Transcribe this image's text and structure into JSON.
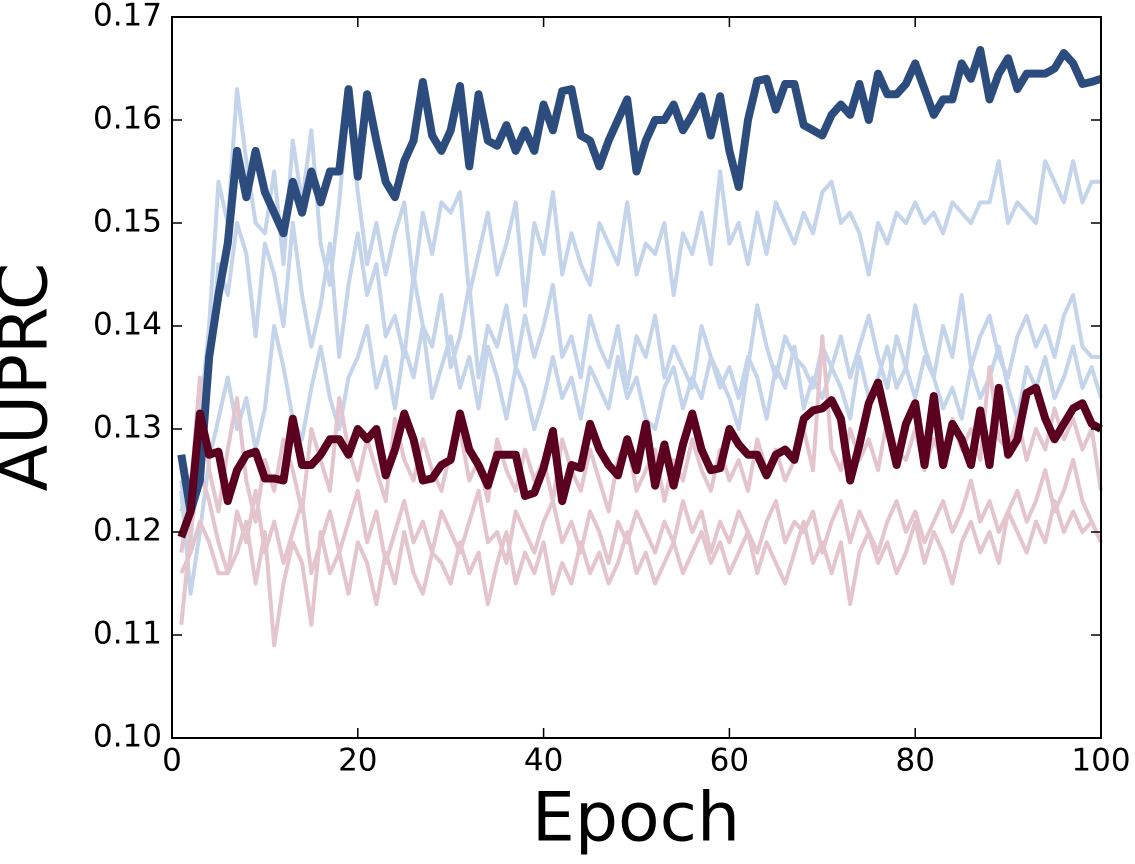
{
  "chart_data": {
    "type": "line",
    "x_label": "Epoch",
    "y_label": "AUPRC",
    "xlim": [
      0,
      100
    ],
    "xticks": [
      0,
      20,
      40,
      60,
      80,
      100
    ],
    "ylim": [
      0.1,
      0.17
    ],
    "yticks": [
      {
        "value": 0.1,
        "label": "0.10"
      },
      0.11,
      0.12,
      0.13,
      0.14,
      0.15,
      0.16,
      0.17
    ],
    "x": [
      1,
      2,
      3,
      4,
      5,
      6,
      7,
      8,
      9,
      10,
      11,
      12,
      13,
      14,
      15,
      16,
      17,
      18,
      19,
      20,
      21,
      22,
      23,
      24,
      25,
      26,
      27,
      28,
      29,
      30,
      31,
      32,
      33,
      34,
      35,
      36,
      37,
      38,
      39,
      40,
      41,
      42,
      43,
      44,
      45,
      46,
      47,
      48,
      49,
      50,
      51,
      52,
      53,
      54,
      55,
      56,
      57,
      58,
      59,
      60,
      61,
      62,
      63,
      64,
      65,
      66,
      67,
      68,
      69,
      70,
      71,
      72,
      73,
      74,
      75,
      76,
      77,
      78,
      79,
      80,
      81,
      82,
      83,
      84,
      85,
      86,
      87,
      88,
      89,
      90,
      91,
      92,
      93,
      94,
      95,
      96,
      97,
      98,
      99,
      100
    ],
    "series": [
      {
        "color": "#c3d4eb",
        "linewidth": 4,
        "values": [
          0.125,
          0.119,
          0.131,
          0.14,
          0.154,
          0.15,
          0.163,
          0.156,
          0.15,
          0.149,
          0.155,
          0.146,
          0.158,
          0.152,
          0.159,
          0.148,
          0.144,
          0.152,
          0.162,
          0.153,
          0.146,
          0.15,
          0.145,
          0.149,
          0.152,
          0.144,
          0.151,
          0.147,
          0.152,
          0.151,
          0.153,
          0.143,
          0.147,
          0.151,
          0.145,
          0.148,
          0.152,
          0.142,
          0.15,
          0.147,
          0.153,
          0.145,
          0.149,
          0.146,
          0.144,
          0.15,
          0.148,
          0.146,
          0.152,
          0.145,
          0.148,
          0.147,
          0.15,
          0.143,
          0.149,
          0.147,
          0.151,
          0.146,
          0.155,
          0.148,
          0.15,
          0.146,
          0.151,
          0.147,
          0.152,
          0.15,
          0.148,
          0.151,
          0.149,
          0.153,
          0.154,
          0.15,
          0.151,
          0.149,
          0.145,
          0.15,
          0.148,
          0.151,
          0.15,
          0.152,
          0.15,
          0.151,
          0.149,
          0.152,
          0.151,
          0.15,
          0.152,
          0.152,
          0.156,
          0.15,
          0.152,
          0.151,
          0.15,
          0.156,
          0.154,
          0.152,
          0.156,
          0.152,
          0.154,
          0.154
        ]
      },
      {
        "color": "#c3d4eb",
        "linewidth": 4,
        "values": [
          0.122,
          0.125,
          0.13,
          0.135,
          0.146,
          0.143,
          0.15,
          0.147,
          0.139,
          0.148,
          0.145,
          0.14,
          0.15,
          0.143,
          0.138,
          0.142,
          0.148,
          0.137,
          0.144,
          0.149,
          0.143,
          0.146,
          0.139,
          0.141,
          0.137,
          0.145,
          0.14,
          0.138,
          0.143,
          0.136,
          0.139,
          0.144,
          0.135,
          0.14,
          0.138,
          0.142,
          0.136,
          0.141,
          0.137,
          0.14,
          0.144,
          0.137,
          0.139,
          0.135,
          0.141,
          0.138,
          0.136,
          0.14,
          0.134,
          0.139,
          0.137,
          0.141,
          0.135,
          0.138,
          0.136,
          0.134,
          0.14,
          0.137,
          0.135,
          0.133,
          0.13,
          0.136,
          0.142,
          0.138,
          0.135,
          0.139,
          0.137,
          0.136,
          0.134,
          0.138,
          0.136,
          0.139,
          0.135,
          0.138,
          0.141,
          0.137,
          0.134,
          0.139,
          0.136,
          0.142,
          0.138,
          0.135,
          0.14,
          0.137,
          0.143,
          0.136,
          0.139,
          0.141,
          0.137,
          0.135,
          0.139,
          0.141,
          0.138,
          0.14,
          0.137,
          0.141,
          0.143,
          0.138,
          0.137,
          0.137
        ]
      },
      {
        "color": "#c3d4eb",
        "linewidth": 4,
        "values": [
          0.124,
          0.114,
          0.12,
          0.127,
          0.131,
          0.135,
          0.13,
          0.133,
          0.128,
          0.132,
          0.14,
          0.136,
          0.131,
          0.129,
          0.134,
          0.138,
          0.133,
          0.13,
          0.135,
          0.137,
          0.14,
          0.134,
          0.137,
          0.132,
          0.138,
          0.135,
          0.14,
          0.133,
          0.136,
          0.139,
          0.134,
          0.137,
          0.132,
          0.138,
          0.135,
          0.131,
          0.136,
          0.134,
          0.13,
          0.133,
          0.137,
          0.133,
          0.135,
          0.131,
          0.136,
          0.134,
          0.132,
          0.137,
          0.133,
          0.135,
          0.131,
          0.13,
          0.134,
          0.136,
          0.132,
          0.135,
          0.133,
          0.137,
          0.134,
          0.136,
          0.133,
          0.137,
          0.135,
          0.131,
          0.136,
          0.134,
          0.138,
          0.132,
          0.135,
          0.133,
          0.136,
          0.134,
          0.131,
          0.137,
          0.133,
          0.135,
          0.138,
          0.134,
          0.136,
          0.133,
          0.137,
          0.135,
          0.132,
          0.134,
          0.131,
          0.136,
          0.133,
          0.135,
          0.138,
          0.134,
          0.131,
          0.136,
          0.134,
          0.137,
          0.133,
          0.135,
          0.138,
          0.134,
          0.136,
          0.133
        ]
      },
      {
        "color": "#e4c5cd",
        "linewidth": 4,
        "values": [
          0.118,
          0.124,
          0.135,
          0.126,
          0.122,
          0.128,
          0.133,
          0.125,
          0.121,
          0.127,
          0.124,
          0.129,
          0.126,
          0.122,
          0.13,
          0.127,
          0.124,
          0.133,
          0.128,
          0.125,
          0.129,
          0.126,
          0.123,
          0.131,
          0.127,
          0.125,
          0.129,
          0.126,
          0.124,
          0.128,
          0.13,
          0.125,
          0.127,
          0.123,
          0.129,
          0.126,
          0.124,
          0.128,
          0.125,
          0.127,
          0.123,
          0.129,
          0.126,
          0.124,
          0.128,
          0.125,
          0.122,
          0.127,
          0.129,
          0.124,
          0.126,
          0.128,
          0.123,
          0.127,
          0.125,
          0.129,
          0.126,
          0.124,
          0.128,
          0.125,
          0.127,
          0.124,
          0.129,
          0.126,
          0.128,
          0.125,
          0.127,
          0.13,
          0.126,
          0.139,
          0.128,
          0.126,
          0.13,
          0.127,
          0.129,
          0.126,
          0.131,
          0.128,
          0.127,
          0.13,
          0.126,
          0.129,
          0.127,
          0.131,
          0.128,
          0.13,
          0.127,
          0.136,
          0.129,
          0.128,
          0.131,
          0.127,
          0.13,
          0.128,
          0.132,
          0.129,
          0.131,
          0.128,
          0.13,
          0.124
        ]
      },
      {
        "color": "#e4c5cd",
        "linewidth": 4,
        "values": [
          0.116,
          0.118,
          0.121,
          0.119,
          0.116,
          0.116,
          0.122,
          0.119,
          0.124,
          0.118,
          0.121,
          0.117,
          0.12,
          0.123,
          0.116,
          0.119,
          0.122,
          0.118,
          0.121,
          0.124,
          0.119,
          0.122,
          0.117,
          0.12,
          0.123,
          0.119,
          0.121,
          0.118,
          0.122,
          0.12,
          0.118,
          0.121,
          0.124,
          0.119,
          0.12,
          0.117,
          0.122,
          0.12,
          0.118,
          0.121,
          0.123,
          0.119,
          0.121,
          0.118,
          0.122,
          0.12,
          0.117,
          0.121,
          0.119,
          0.122,
          0.12,
          0.118,
          0.121,
          0.119,
          0.123,
          0.12,
          0.122,
          0.118,
          0.121,
          0.119,
          0.122,
          0.12,
          0.118,
          0.121,
          0.123,
          0.119,
          0.121,
          0.12,
          0.122,
          0.118,
          0.121,
          0.123,
          0.119,
          0.122,
          0.12,
          0.118,
          0.121,
          0.123,
          0.12,
          0.122,
          0.119,
          0.121,
          0.123,
          0.12,
          0.122,
          0.125,
          0.121,
          0.123,
          0.12,
          0.122,
          0.124,
          0.121,
          0.123,
          0.126,
          0.122,
          0.124,
          0.127,
          0.123,
          0.121,
          0.119
        ]
      },
      {
        "color": "#e4c5cd",
        "linewidth": 4,
        "values": [
          0.111,
          0.12,
          0.126,
          0.123,
          0.119,
          0.116,
          0.118,
          0.121,
          0.115,
          0.12,
          0.109,
          0.115,
          0.119,
          0.117,
          0.111,
          0.12,
          0.116,
          0.118,
          0.114,
          0.119,
          0.117,
          0.113,
          0.118,
          0.115,
          0.12,
          0.116,
          0.114,
          0.118,
          0.117,
          0.115,
          0.119,
          0.116,
          0.118,
          0.113,
          0.117,
          0.12,
          0.115,
          0.118,
          0.116,
          0.119,
          0.114,
          0.117,
          0.115,
          0.119,
          0.116,
          0.118,
          0.115,
          0.117,
          0.12,
          0.116,
          0.118,
          0.115,
          0.117,
          0.119,
          0.116,
          0.118,
          0.12,
          0.117,
          0.119,
          0.116,
          0.118,
          0.12,
          0.116,
          0.119,
          0.117,
          0.115,
          0.118,
          0.121,
          0.117,
          0.119,
          0.116,
          0.119,
          0.113,
          0.118,
          0.12,
          0.117,
          0.119,
          0.116,
          0.118,
          0.121,
          0.117,
          0.12,
          0.118,
          0.115,
          0.119,
          0.121,
          0.118,
          0.12,
          0.117,
          0.122,
          0.12,
          0.118,
          0.121,
          0.119,
          0.123,
          0.12,
          0.122,
          0.12,
          0.121,
          0.119
        ]
      },
      {
        "color": "#2d4c7e",
        "linewidth": 8,
        "values": [
          0.1275,
          0.122,
          0.125,
          0.137,
          0.143,
          0.148,
          0.157,
          0.1525,
          0.157,
          0.153,
          0.151,
          0.149,
          0.154,
          0.151,
          0.155,
          0.152,
          0.155,
          0.155,
          0.163,
          0.1545,
          0.1625,
          0.158,
          0.154,
          0.1525,
          0.156,
          0.158,
          0.1637,
          0.1585,
          0.157,
          0.159,
          0.1633,
          0.1555,
          0.1625,
          0.158,
          0.1575,
          0.1595,
          0.157,
          0.159,
          0.157,
          0.1615,
          0.159,
          0.1628,
          0.163,
          0.1585,
          0.158,
          0.1555,
          0.158,
          0.16,
          0.162,
          0.155,
          0.158,
          0.16,
          0.16,
          0.1615,
          0.159,
          0.1605,
          0.1623,
          0.1585,
          0.1623,
          0.157,
          0.1535,
          0.16,
          0.1638,
          0.164,
          0.161,
          0.1635,
          0.1635,
          0.1595,
          0.159,
          0.1585,
          0.1605,
          0.1615,
          0.1605,
          0.1635,
          0.16,
          0.1645,
          0.1625,
          0.1625,
          0.1635,
          0.1655,
          0.163,
          0.1605,
          0.162,
          0.162,
          0.1655,
          0.164,
          0.1668,
          0.162,
          0.1645,
          0.166,
          0.163,
          0.1645,
          0.1645,
          0.1645,
          0.165,
          0.1665,
          0.1655,
          0.1635,
          0.1637,
          0.164
        ]
      },
      {
        "color": "#5b001f",
        "linewidth": 8,
        "values": [
          0.1195,
          0.122,
          0.1315,
          0.1275,
          0.1278,
          0.123,
          0.126,
          0.1275,
          0.1278,
          0.1252,
          0.1252,
          0.125,
          0.131,
          0.1265,
          0.1265,
          0.1275,
          0.129,
          0.129,
          0.1275,
          0.13,
          0.129,
          0.13,
          0.1255,
          0.128,
          0.1315,
          0.129,
          0.125,
          0.1252,
          0.1265,
          0.127,
          0.1315,
          0.128,
          0.1265,
          0.1245,
          0.1275,
          0.1275,
          0.1275,
          0.1235,
          0.1238,
          0.1262,
          0.1298,
          0.123,
          0.1265,
          0.1262,
          0.1305,
          0.128,
          0.1265,
          0.1255,
          0.129,
          0.126,
          0.1305,
          0.1245,
          0.1285,
          0.1245,
          0.1285,
          0.1315,
          0.128,
          0.126,
          0.1262,
          0.13,
          0.1285,
          0.1275,
          0.1275,
          0.1255,
          0.1275,
          0.128,
          0.127,
          0.131,
          0.1318,
          0.132,
          0.1328,
          0.131,
          0.125,
          0.1285,
          0.1325,
          0.1345,
          0.1305,
          0.1265,
          0.1305,
          0.1325,
          0.1265,
          0.1332,
          0.1265,
          0.1305,
          0.129,
          0.1265,
          0.1318,
          0.1265,
          0.134,
          0.1275,
          0.129,
          0.1335,
          0.134,
          0.131,
          0.129,
          0.1305,
          0.132,
          0.1325,
          0.1305,
          0.13
        ]
      }
    ]
  }
}
